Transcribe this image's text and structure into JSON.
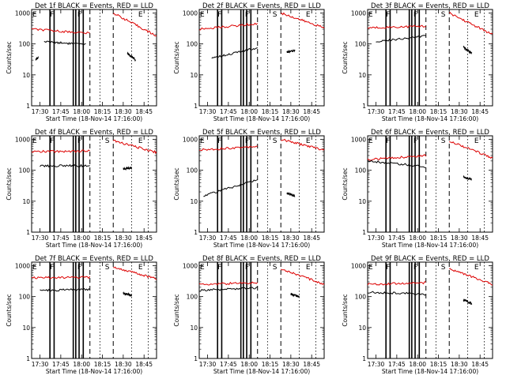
{
  "figure": {
    "x_label": "Start Time (18-Nov-14 17:16:00)",
    "y_label": "Counts/sec",
    "y_ticks": [
      "1",
      "10",
      "100",
      "1000"
    ],
    "x_ticks": [
      "17:30",
      "17:45",
      "18:00",
      "18:15",
      "18:30",
      "18:45"
    ],
    "series_colors": {
      "events": "#000000",
      "lld": "#dd0000"
    }
  },
  "chart_data": [
    {
      "type": "line",
      "title": "Det 1f BLACK = Events, RED = LLD",
      "yscale": "log",
      "ylim": [
        1,
        1300
      ],
      "xlim": [
        17.4,
        18.9
      ],
      "region_labels": [
        {
          "label": "E",
          "x": 17.35
        },
        {
          "label": "F",
          "x": 17.62
        },
        {
          "label": "F",
          "x": 17.95
        },
        {
          "label": "E",
          "x": 18.68
        }
      ],
      "gaps": [
        17.62,
        17.67,
        17.9,
        17.93,
        17.97,
        18.02
      ],
      "events": {
        "segments": [
          {
            "x": [
              17.45,
              17.48
            ],
            "y": [
              32,
              36
            ]
          },
          {
            "x": [
              17.55,
              18.05
            ],
            "y": [
              120,
              95
            ]
          },
          {
            "x": [
              18.55,
              18.65
            ],
            "y": [
              50,
              30
            ]
          }
        ]
      },
      "lld": {
        "segments": [
          {
            "x": [
              17.4,
              18.1
            ],
            "y": [
              300,
              220
            ]
          },
          {
            "x": [
              18.38,
              18.9
            ],
            "y": [
              1000,
              180
            ]
          }
        ]
      }
    },
    {
      "type": "line",
      "title": "Det 2f BLACK = Events, RED = LLD",
      "yscale": "log",
      "ylim": [
        1,
        1300
      ],
      "xlim": [
        17.4,
        18.9
      ],
      "region_labels": [
        {
          "label": "E",
          "x": 17.35
        },
        {
          "label": "F",
          "x": 17.62
        },
        {
          "label": "F",
          "x": 17.95
        },
        {
          "label": "S",
          "x": 18.28
        },
        {
          "label": "E",
          "x": 18.68
        }
      ],
      "gaps": [
        17.62,
        17.67,
        17.9,
        17.93,
        17.97,
        18.02
      ],
      "events": {
        "segments": [
          {
            "x": [
              17.55,
              18.1
            ],
            "y": [
              35,
              75
            ]
          },
          {
            "x": [
              18.45,
              18.55
            ],
            "y": [
              55,
              60
            ]
          }
        ]
      },
      "lld": {
        "segments": [
          {
            "x": [
              17.4,
              18.1
            ],
            "y": [
              300,
              450
            ]
          },
          {
            "x": [
              18.38,
              18.9
            ],
            "y": [
              1000,
              330
            ]
          }
        ]
      }
    },
    {
      "type": "line",
      "title": "Det 3f BLACK = Events, RED = LLD",
      "yscale": "log",
      "ylim": [
        1,
        1300
      ],
      "xlim": [
        17.4,
        18.9
      ],
      "region_labels": [
        {
          "label": "E",
          "x": 17.35
        },
        {
          "label": "F",
          "x": 17.62
        },
        {
          "label": "F",
          "x": 17.95
        },
        {
          "label": "S",
          "x": 18.28
        },
        {
          "label": "E",
          "x": 18.68
        }
      ],
      "gaps": [
        17.62,
        17.67,
        17.9,
        17.93,
        17.97,
        18.02
      ],
      "events": {
        "segments": [
          {
            "x": [
              17.5,
              18.1
            ],
            "y": [
              120,
              180
            ]
          },
          {
            "x": [
              18.55,
              18.65
            ],
            "y": [
              80,
              50
            ]
          }
        ]
      },
      "lld": {
        "segments": [
          {
            "x": [
              17.4,
              18.1
            ],
            "y": [
              330,
              380
            ]
          },
          {
            "x": [
              18.38,
              18.9
            ],
            "y": [
              1000,
              200
            ]
          }
        ]
      }
    },
    {
      "type": "line",
      "title": "Det 4f BLACK = Events, RED = LLD",
      "yscale": "log",
      "ylim": [
        1,
        1300
      ],
      "xlim": [
        17.4,
        18.9
      ],
      "region_labels": [
        {
          "label": "E",
          "x": 17.35
        },
        {
          "label": "F",
          "x": 17.62
        },
        {
          "label": "F",
          "x": 17.95
        },
        {
          "label": "S",
          "x": 18.28
        },
        {
          "label": "E",
          "x": 18.68
        }
      ],
      "gaps": [
        17.62,
        17.67,
        17.9,
        17.93,
        17.97,
        18.02
      ],
      "events": {
        "segments": [
          {
            "x": [
              17.5,
              18.1
            ],
            "y": [
              140,
              140
            ]
          },
          {
            "x": [
              18.5,
              18.6
            ],
            "y": [
              110,
              120
            ]
          }
        ]
      },
      "lld": {
        "segments": [
          {
            "x": [
              17.4,
              18.1
            ],
            "y": [
              400,
              420
            ]
          },
          {
            "x": [
              18.38,
              18.9
            ],
            "y": [
              900,
              380
            ]
          }
        ]
      }
    },
    {
      "type": "line",
      "title": "Det 5f BLACK = Events, RED = LLD",
      "yscale": "log",
      "ylim": [
        1,
        1300
      ],
      "xlim": [
        17.4,
        18.9
      ],
      "region_labels": [
        {
          "label": "E",
          "x": 17.35
        },
        {
          "label": "F",
          "x": 17.62
        },
        {
          "label": "F",
          "x": 17.95
        },
        {
          "label": "S",
          "x": 18.28
        },
        {
          "label": "E",
          "x": 18.68
        }
      ],
      "gaps": [
        17.62,
        17.67,
        17.9,
        17.93,
        17.97,
        18.02
      ],
      "events": {
        "segments": [
          {
            "x": [
              17.45,
              18.1
            ],
            "y": [
              15,
              50
            ]
          },
          {
            "x": [
              18.45,
              18.55
            ],
            "y": [
              18,
              15
            ]
          }
        ]
      },
      "lld": {
        "segments": [
          {
            "x": [
              17.4,
              18.1
            ],
            "y": [
              450,
              600
            ]
          },
          {
            "x": [
              18.38,
              18.9
            ],
            "y": [
              1000,
              450
            ]
          }
        ]
      }
    },
    {
      "type": "line",
      "title": "Det 6f BLACK = Events, RED = LLD",
      "yscale": "log",
      "ylim": [
        1,
        1300
      ],
      "xlim": [
        17.4,
        18.9
      ],
      "region_labels": [
        {
          "label": "E",
          "x": 17.35
        },
        {
          "label": "F",
          "x": 17.62
        },
        {
          "label": "F",
          "x": 17.95
        },
        {
          "label": "S",
          "x": 18.28
        },
        {
          "label": "E",
          "x": 18.68
        }
      ],
      "gaps": [
        17.62,
        17.67,
        17.9,
        17.93,
        17.97,
        18.02
      ],
      "events": {
        "segments": [
          {
            "x": [
              17.4,
              18.1
            ],
            "y": [
              200,
              130
            ]
          },
          {
            "x": [
              18.55,
              18.65
            ],
            "y": [
              60,
              50
            ]
          }
        ]
      },
      "lld": {
        "segments": [
          {
            "x": [
              17.4,
              18.1
            ],
            "y": [
              220,
              300
            ]
          },
          {
            "x": [
              18.38,
              18.9
            ],
            "y": [
              900,
              250
            ]
          }
        ]
      }
    },
    {
      "type": "line",
      "title": "Det 7f BLACK = Events, RED = LLD",
      "yscale": "log",
      "ylim": [
        1,
        1300
      ],
      "xlim": [
        17.4,
        18.9
      ],
      "region_labels": [
        {
          "label": "E",
          "x": 17.35
        },
        {
          "label": "F",
          "x": 17.62
        },
        {
          "label": "F",
          "x": 17.95
        },
        {
          "label": "S",
          "x": 18.28
        },
        {
          "label": "E",
          "x": 18.68
        }
      ],
      "gaps": [
        17.62,
        17.67,
        17.9,
        17.93,
        17.97,
        18.02
      ],
      "events": {
        "segments": [
          {
            "x": [
              17.5,
              18.1
            ],
            "y": [
              160,
              170
            ]
          },
          {
            "x": [
              18.5,
              18.6
            ],
            "y": [
              130,
              110
            ]
          }
        ]
      },
      "lld": {
        "segments": [
          {
            "x": [
              17.4,
              18.1
            ],
            "y": [
              400,
              420
            ]
          },
          {
            "x": [
              18.38,
              18.9
            ],
            "y": [
              900,
              380
            ]
          }
        ]
      }
    },
    {
      "type": "line",
      "title": "Det 8f BLACK = Events, RED = LLD",
      "yscale": "log",
      "ylim": [
        1,
        1300
      ],
      "xlim": [
        17.4,
        18.9
      ],
      "region_labels": [
        {
          "label": "E",
          "x": 17.35
        },
        {
          "label": "F",
          "x": 17.62
        },
        {
          "label": "F",
          "x": 17.95
        },
        {
          "label": "S",
          "x": 18.28
        },
        {
          "label": "E",
          "x": 18.68
        }
      ],
      "gaps": [
        17.62,
        17.67,
        17.9,
        17.93,
        17.97,
        18.02
      ],
      "events": {
        "segments": [
          {
            "x": [
              17.4,
              18.1
            ],
            "y": [
              160,
              190
            ]
          },
          {
            "x": [
              18.5,
              18.6
            ],
            "y": [
              120,
              100
            ]
          }
        ]
      },
      "lld": {
        "segments": [
          {
            "x": [
              17.4,
              18.1
            ],
            "y": [
              250,
              280
            ]
          },
          {
            "x": [
              18.38,
              18.9
            ],
            "y": [
              800,
              250
            ]
          }
        ]
      }
    },
    {
      "type": "line",
      "title": "Det 9f BLACK = Events, RED = LLD",
      "yscale": "log",
      "ylim": [
        1,
        1300
      ],
      "xlim": [
        17.4,
        18.9
      ],
      "region_labels": [
        {
          "label": "E",
          "x": 17.35
        },
        {
          "label": "F",
          "x": 17.62
        },
        {
          "label": "F",
          "x": 17.95
        },
        {
          "label": "S",
          "x": 18.28
        },
        {
          "label": "E",
          "x": 18.68
        }
      ],
      "gaps": [
        17.62,
        17.67,
        17.9,
        17.93,
        17.97,
        18.02
      ],
      "events": {
        "segments": [
          {
            "x": [
              17.4,
              18.1
            ],
            "y": [
              140,
              120
            ]
          },
          {
            "x": [
              18.55,
              18.65
            ],
            "y": [
              80,
              60
            ]
          }
        ]
      },
      "lld": {
        "segments": [
          {
            "x": [
              17.4,
              18.1
            ],
            "y": [
              250,
              280
            ]
          },
          {
            "x": [
              18.38,
              18.9
            ],
            "y": [
              800,
              250
            ]
          }
        ]
      }
    }
  ]
}
